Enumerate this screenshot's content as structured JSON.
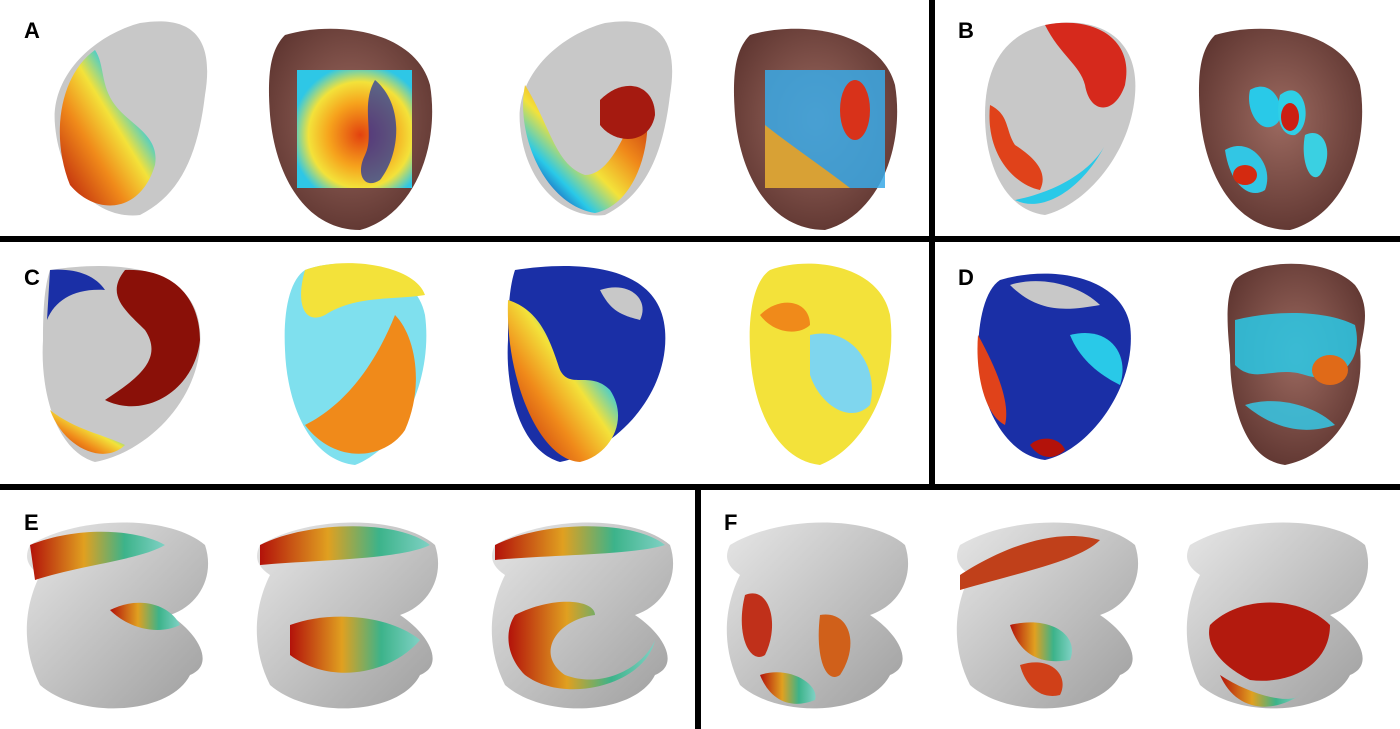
{
  "figure": {
    "panels": [
      {
        "id": "A",
        "label": "A"
      },
      {
        "id": "B",
        "label": "B"
      },
      {
        "id": "C",
        "label": "C"
      },
      {
        "id": "D",
        "label": "D"
      },
      {
        "id": "E",
        "label": "E"
      },
      {
        "id": "F",
        "label": "F"
      }
    ]
  },
  "colors": {
    "divider": "#000000",
    "heart_tissue": "#8a5a52",
    "map_red": "#b3120a",
    "map_orange": "#f08a1a",
    "map_yellow": "#f3e23a",
    "map_cyan": "#29c9e8",
    "map_blue": "#1a2fa6",
    "mesh_grey": "#bdbdbd"
  }
}
